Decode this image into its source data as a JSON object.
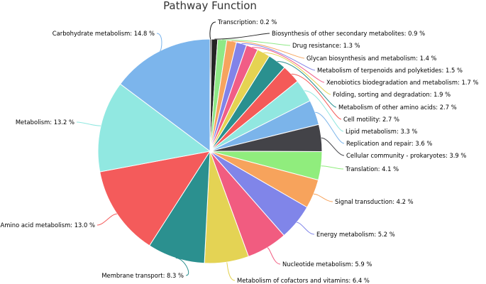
{
  "chart_data": {
    "type": "pie",
    "title": "Pathway Function",
    "unit": "%",
    "slices": [
      {
        "label": "Transcription",
        "value": 0.2,
        "color": "#111111"
      },
      {
        "label": "Biosynthesis of other secondary metabolites",
        "value": 0.9,
        "color": "#242424"
      },
      {
        "label": "Drug resistance",
        "value": 1.3,
        "color": "#8fe886"
      },
      {
        "label": "Glycan biosynthesis and metabolism",
        "value": 1.4,
        "color": "#f6a45e"
      },
      {
        "label": "Metabolism of terpenoids and polyketides",
        "value": 1.5,
        "color": "#8283e8"
      },
      {
        "label": "Xenobiotics biodegradation and metabolism",
        "value": 1.7,
        "color": "#f15d86"
      },
      {
        "label": "Folding, sorting and degradation",
        "value": 1.9,
        "color": "#e5d352"
      },
      {
        "label": "Metabolism of other amino acids",
        "value": 2.7,
        "color": "#2a908f"
      },
      {
        "label": "Cell motility",
        "value": 2.7,
        "color": "#f45a58"
      },
      {
        "label": "Lipid metabolism",
        "value": 3.3,
        "color": "#91e7e0"
      },
      {
        "label": "Replication and repair",
        "value": 3.6,
        "color": "#7bb4ea"
      },
      {
        "label": "Cellular community - prokaryotes",
        "value": 3.9,
        "color": "#434348"
      },
      {
        "label": "Translation",
        "value": 4.1,
        "color": "#90ed7d"
      },
      {
        "label": "Signal transduction",
        "value": 4.2,
        "color": "#f7a35c"
      },
      {
        "label": "Energy metabolism",
        "value": 5.2,
        "color": "#8085e9"
      },
      {
        "label": "Nucleotide metabolism",
        "value": 5.9,
        "color": "#f15c80"
      },
      {
        "label": "Metabolism of cofactors and vitamins",
        "value": 6.4,
        "color": "#e4d354"
      },
      {
        "label": "Membrane transport",
        "value": 8.3,
        "color": "#2b908f"
      },
      {
        "label": "Amino acid metabolism",
        "value": 13.0,
        "color": "#f45b5b"
      },
      {
        "label": "Metabolism",
        "value": 13.2,
        "color": "#91e8e1"
      },
      {
        "label": "Carbohydrate metabolism",
        "value": 14.8,
        "color": "#7cb5ec"
      }
    ]
  }
}
